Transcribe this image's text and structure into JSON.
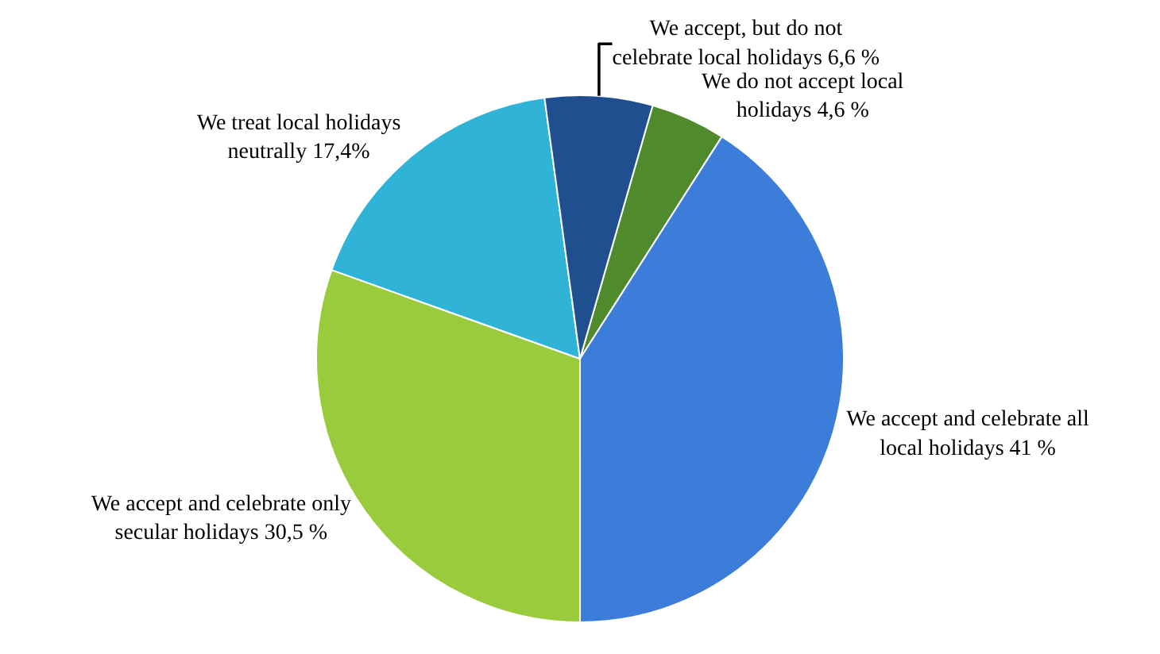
{
  "chart_data": {
    "type": "pie",
    "categories": [
      "We do not accept local holidays",
      "We accept and celebrate all local holidays",
      "We accept and celebrate only secular holidays",
      "We treat local holidays neutrally",
      "We accept, but do not celebrate local holidays"
    ],
    "values": [
      4.6,
      41,
      30.5,
      17.4,
      6.6
    ],
    "value_labels": [
      "4,6 %",
      "41 %",
      "30,5 %",
      "17,4%",
      "6,6 %"
    ],
    "colors": [
      "#4f8a2c",
      "#3b7dd8",
      "#9acb3c",
      "#2fb3d6",
      "#1f4f8f"
    ],
    "legend": false
  }
}
